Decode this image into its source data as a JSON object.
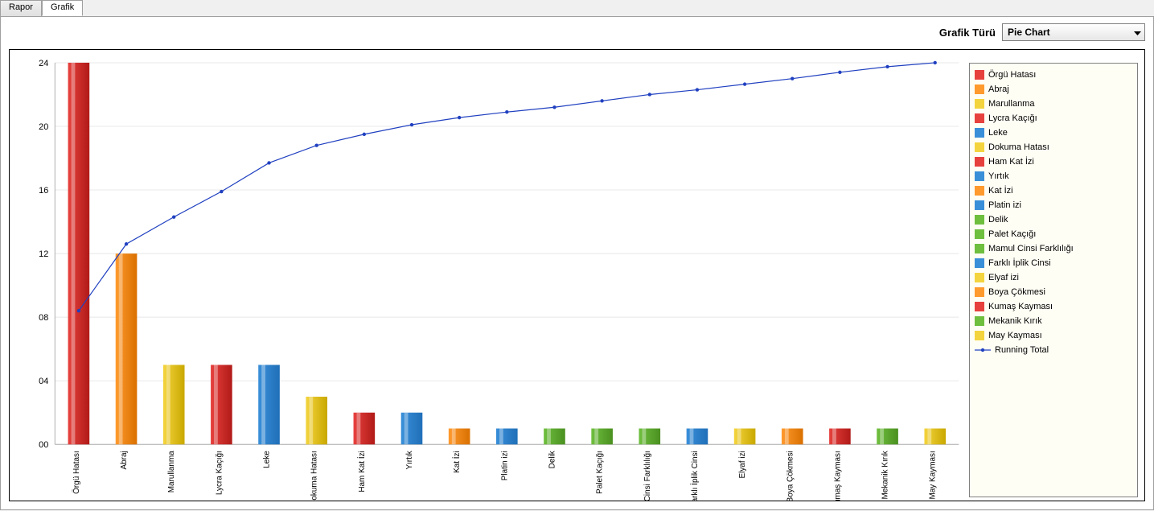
{
  "tabs": {
    "rapor": "Rapor",
    "grafik": "Grafik"
  },
  "topbar": {
    "label": "Grafik Türü",
    "selected": "Pie Chart"
  },
  "chart": {
    "type": "pareto",
    "ylim": [
      0,
      24
    ],
    "ytick_step": 4,
    "yticks": [
      "00",
      "04",
      "08",
      "12",
      "16",
      "20",
      "24"
    ],
    "grid_color": "#e8e8e8",
    "background_color": "#ffffff",
    "line_color": "#2040c0",
    "line_name": "Running Total",
    "categories": [
      {
        "label": "Örgü Hatası",
        "value": 24,
        "color": "#e7413e",
        "grad": "#b01a17"
      },
      {
        "label": "Abraj",
        "value": 12,
        "color": "#ff9a2e",
        "grad": "#d97000"
      },
      {
        "label": "Marullanma",
        "value": 5,
        "color": "#f4d43e",
        "grad": "#c9a800"
      },
      {
        "label": "Lycra Kaçığı",
        "value": 5,
        "color": "#e7413e",
        "grad": "#b01a17"
      },
      {
        "label": "Leke",
        "value": 5,
        "color": "#3a8fd9",
        "grad": "#1f6fb8"
      },
      {
        "label": "Dokuma Hatası",
        "value": 3,
        "color": "#f4d43e",
        "grad": "#c9a800"
      },
      {
        "label": "Ham Kat İzi",
        "value": 2,
        "color": "#e7413e",
        "grad": "#b01a17"
      },
      {
        "label": "Yırtık",
        "value": 2,
        "color": "#3a8fd9",
        "grad": "#1f6fb8"
      },
      {
        "label": "Kat İzi",
        "value": 1,
        "color": "#ff9a2e",
        "grad": "#d97000"
      },
      {
        "label": "Platin izi",
        "value": 1,
        "color": "#3a8fd9",
        "grad": "#1f6fb8"
      },
      {
        "label": "Delik",
        "value": 1,
        "color": "#6fbf3f",
        "grad": "#4a9020"
      },
      {
        "label": "Palet Kaçığı",
        "value": 1,
        "color": "#6fbf3f",
        "grad": "#4a9020"
      },
      {
        "label": "Mamul Cinsi Farklılığı",
        "value": 1,
        "color": "#6fbf3f",
        "grad": "#4a9020"
      },
      {
        "label": "Farklı İplik Cinsi",
        "value": 1,
        "color": "#3a8fd9",
        "grad": "#1f6fb8"
      },
      {
        "label": "Elyaf izi",
        "value": 1,
        "color": "#f4d43e",
        "grad": "#c9a800"
      },
      {
        "label": "Boya Çökmesi",
        "value": 1,
        "color": "#ff9a2e",
        "grad": "#d97000"
      },
      {
        "label": "Kumaş Kayması",
        "value": 1,
        "color": "#e7413e",
        "grad": "#b01a17"
      },
      {
        "label": "Mekanik Kırık",
        "value": 1,
        "color": "#6fbf3f",
        "grad": "#4a9020"
      },
      {
        "label": "May Kayması",
        "value": 1,
        "color": "#f4d43e",
        "grad": "#c9a800"
      }
    ],
    "running_total": [
      8.4,
      12.6,
      14.3,
      15.9,
      17.7,
      18.8,
      19.5,
      20.1,
      20.55,
      20.9,
      21.2,
      21.6,
      22.0,
      22.3,
      22.65,
      23.0,
      23.4,
      23.75,
      24.0
    ],
    "bar_width": 0.45
  },
  "legend_colors": {
    "Örgü Hatası": "#e7413e",
    "Abraj": "#ff9a2e",
    "Marullanma": "#f4d43e",
    "Lycra Kaçığı": "#e7413e",
    "Leke": "#3a8fd9",
    "Dokuma Hatası": "#f4d43e",
    "Ham Kat İzi": "#e7413e",
    "Yırtık": "#3a8fd9",
    "Kat İzi": "#ff9a2e",
    "Platin izi": "#3a8fd9",
    "Delik": "#6fbf3f",
    "Palet Kaçığı": "#6fbf3f",
    "Mamul Cinsi Farklılığı": "#6fbf3f",
    "Farklı İplik Cinsi": "#3a8fd9",
    "Elyaf izi": "#f4d43e",
    "Boya Çökmesi": "#ff9a2e",
    "Kumaş Kayması": "#e7413e",
    "Mekanik Kırık": "#6fbf3f",
    "May Kayması": "#f4d43e"
  }
}
